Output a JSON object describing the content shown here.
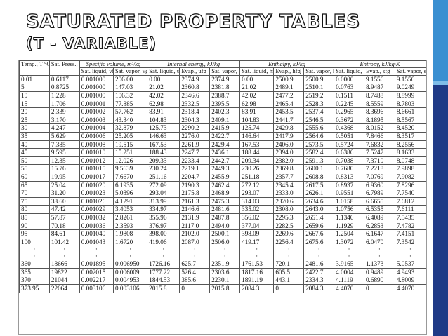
{
  "slide": {
    "title_line1": "SATURATED PROPERTY TABLES",
    "title_line2": "(T - VARIABLE)"
  },
  "table": {
    "group_headers": {
      "specific_volume": "Specific volume, m³/kg",
      "internal_energy": "Internal energy, kJ/kg",
      "enthalpy": "Enthalpy, kJ/kg",
      "entropy": "Entropy, kJ/kg·K"
    },
    "columns": [
      "Temp., T °C",
      "Sat. Press., Psat kPa",
      "Sat. liquid, vf",
      "Sat. vapor, vg",
      "Sat. liquid, uf",
      "Evap., ufg",
      "Sat. vapor, ug",
      "Sat. liquid, hf",
      "Evap., hfg",
      "Sat. vapor, hg",
      "Sat. liquid, sf",
      "Evap., sfg",
      "Sat. vapor, sg"
    ],
    "rows": [
      [
        "0.01",
        "0.6117",
        "0.001000",
        "206.00",
        "0.00",
        "2374.9",
        "2374.9",
        "0.00",
        "2500.9",
        "2500.9",
        "0.0000",
        "9.1556",
        "9.1556"
      ],
      [
        "5",
        "0.8725",
        "0.001000",
        "147.03",
        "21.02",
        "2360.8",
        "2381.8",
        "21.02",
        "2489.1",
        "2510.1",
        "0.0763",
        "8.9487",
        "9.0249"
      ],
      [
        "10",
        "1.228",
        "0.001000",
        "106.32",
        "42.02",
        "2346.6",
        "2388.7",
        "42.02",
        "2477.2",
        "2519.2",
        "0.1511",
        "8.7488",
        "8.8999"
      ],
      [
        "15",
        "1.706",
        "0.001001",
        "77.885",
        "62.98",
        "2332.5",
        "2395.5",
        "62.98",
        "2465.4",
        "2528.3",
        "0.2245",
        "8.5559",
        "8.7803"
      ],
      [
        "20",
        "2.339",
        "0.001002",
        "57.762",
        "83.91",
        "2318.4",
        "2402.3",
        "83.91",
        "2453.5",
        "2537.4",
        "0.2965",
        "8.3696",
        "8.6661"
      ],
      [
        "25",
        "3.170",
        "0.001003",
        "43.340",
        "104.83",
        "2304.3",
        "2409.1",
        "104.83",
        "2441.7",
        "2546.5",
        "0.3672",
        "8.1895",
        "8.5567"
      ],
      [
        "30",
        "4.247",
        "0.001004",
        "32.879",
        "125.73",
        "2290.2",
        "2415.9",
        "125.74",
        "2429.8",
        "2555.6",
        "0.4368",
        "8.0152",
        "8.4520"
      ],
      [
        "35",
        "5.629",
        "0.001006",
        "25.205",
        "146.63",
        "2276.0",
        "2422.7",
        "146.64",
        "2417.9",
        "2564.6",
        "0.5051",
        "7.8466",
        "8.3517"
      ],
      [
        "40",
        "7.385",
        "0.001008",
        "19.515",
        "167.53",
        "2261.9",
        "2429.4",
        "167.53",
        "2406.0",
        "2573.5",
        "0.5724",
        "7.6832",
        "8.2556"
      ],
      [
        "45",
        "9.595",
        "0.001010",
        "15.251",
        "188.43",
        "2247.7",
        "2436.1",
        "188.44",
        "2394.0",
        "2582.4",
        "0.6386",
        "7.5247",
        "8.1633"
      ],
      [
        "50",
        "12.35",
        "0.001012",
        "12.026",
        "209.33",
        "2233.4",
        "2442.7",
        "209.34",
        "2382.0",
        "2591.3",
        "0.7038",
        "7.3710",
        "8.0748"
      ],
      [
        "55",
        "15.76",
        "0.001015",
        "9.5639",
        "230.24",
        "2219.1",
        "2449.3",
        "230.26",
        "2369.8",
        "2600.1",
        "0.7680",
        "7.2218",
        "7.9898"
      ],
      [
        "60",
        "19.95",
        "0.001017",
        "7.6670",
        "251.16",
        "2204.7",
        "2455.9",
        "251.18",
        "2357.7",
        "2608.8",
        "0.8313",
        "7.0769",
        "7.9082"
      ],
      [
        "65",
        "25.04",
        "0.001020",
        "6.1935",
        "272.09",
        "2190.3",
        "2462.4",
        "272.12",
        "2345.4",
        "2617.5",
        "0.8937",
        "6.9360",
        "7.8296"
      ],
      [
        "70",
        "31.20",
        "0.001023",
        "5.0396",
        "293.04",
        "2175.8",
        "2468.9",
        "293.07",
        "2333.0",
        "2626.1",
        "0.9551",
        "6.7989",
        "7.7540"
      ],
      [
        "75",
        "38.60",
        "0.001026",
        "4.1291",
        "313.99",
        "2161.3",
        "2475.3",
        "314.03",
        "2320.6",
        "2634.6",
        "1.0158",
        "6.6655",
        "7.6812"
      ],
      [
        "80",
        "47.42",
        "0.001029",
        "3.4053",
        "334.97",
        "2146.6",
        "2481.6",
        "335.02",
        "2308.0",
        "2643.0",
        "1.0756",
        "6.5355",
        "7.6111"
      ],
      [
        "85",
        "57.87",
        "0.001032",
        "2.8261",
        "355.96",
        "2131.9",
        "2487.8",
        "356.02",
        "2295.3",
        "2651.4",
        "1.1346",
        "6.4089",
        "7.5435"
      ],
      [
        "90",
        "70.18",
        "0.001036",
        "2.3593",
        "376.97",
        "2117.0",
        "2494.0",
        "377.04",
        "2282.5",
        "2659.6",
        "1.1929",
        "6.2853",
        "7.4782"
      ],
      [
        "95",
        "84.61",
        "0.001040",
        "1.9808",
        "398.00",
        "2102.0",
        "2500.1",
        "398.09",
        "2269.6",
        "2667.6",
        "1.2504",
        "6.1647",
        "7.4151"
      ],
      [
        "100",
        "101.42",
        "0.001043",
        "1.6720",
        "419.06",
        "2087.0",
        "2506.0",
        "419.17",
        "2256.4",
        "2675.6",
        "1.3072",
        "6.0470",
        "7.3542"
      ]
    ],
    "dots": [
      "·",
      "·",
      "·",
      "·",
      "·",
      "·",
      "·",
      "·",
      "·",
      "·",
      "·",
      "·",
      "·"
    ],
    "tail_rows": [
      [
        "360",
        "18666",
        "0.001895",
        "0.006950",
        "1726.16",
        "625.7",
        "2351.9",
        "1761.53",
        "720.1",
        "2481.6",
        "3.9165",
        "1.1373",
        "5.0537"
      ],
      [
        "365",
        "19822",
        "0.002015",
        "0.006009",
        "1777.22",
        "526.4",
        "2303.6",
        "1817.16",
        "605.5",
        "2422.7",
        "4.0004",
        "0.9489",
        "4.9493"
      ],
      [
        "370",
        "21044",
        "0.002217",
        "0.004953",
        "1844.53",
        "385.6",
        "2230.1",
        "1891.19",
        "443.1",
        "2334.3",
        "4.1119",
        "0.6890",
        "4.8009"
      ],
      [
        "373.95",
        "22064",
        "0.003106",
        "0.003106",
        "2015.8",
        "0",
        "2015.8",
        "2084.3",
        "0",
        "2084.3",
        "4.4070",
        "0",
        "4.4070"
      ]
    ]
  },
  "colors": {
    "sidebar_dark": "#1f3a86",
    "sidebar_light": "#3a8fd1"
  }
}
